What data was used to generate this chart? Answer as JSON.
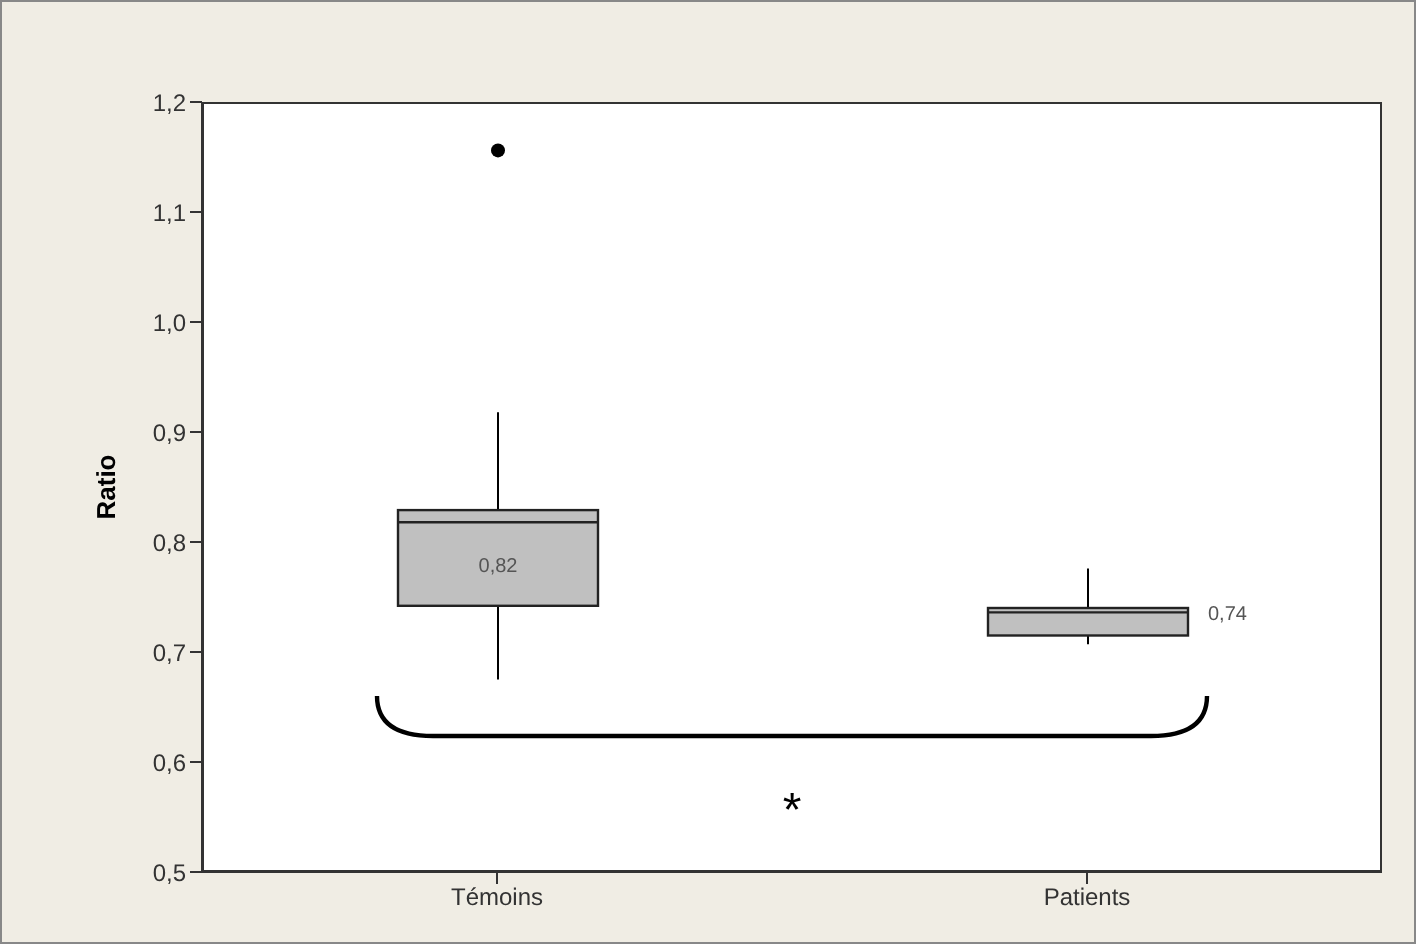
{
  "chart_data": {
    "type": "box",
    "ylabel": "Ratio",
    "categories": [
      "Témoins",
      "Patients"
    ],
    "boxes": [
      {
        "low": 0.675,
        "q1": 0.742,
        "median": 0.818,
        "q3": 0.829,
        "high": 0.918,
        "outliers": [
          1.156
        ]
      },
      {
        "low": 0.707,
        "q1": 0.715,
        "median": 0.736,
        "q3": 0.74,
        "high": 0.776
      }
    ],
    "color": "#c0c0c0",
    "ylim": [
      0.5,
      1.2
    ],
    "yticks": [
      {
        "value": 0.5,
        "label": "0,5"
      },
      {
        "value": 0.6,
        "label": "0,6"
      },
      {
        "value": 0.7,
        "label": "0,7"
      },
      {
        "value": 0.8,
        "label": "0,8"
      },
      {
        "value": 0.9,
        "label": "0,9"
      },
      {
        "value": 1.0,
        "label": "1,0"
      },
      {
        "value": 1.1,
        "label": "1,1"
      },
      {
        "value": 1.2,
        "label": "1,2"
      }
    ],
    "annotations": [
      "0,82",
      "0,74",
      "*"
    ],
    "grid": false
  }
}
